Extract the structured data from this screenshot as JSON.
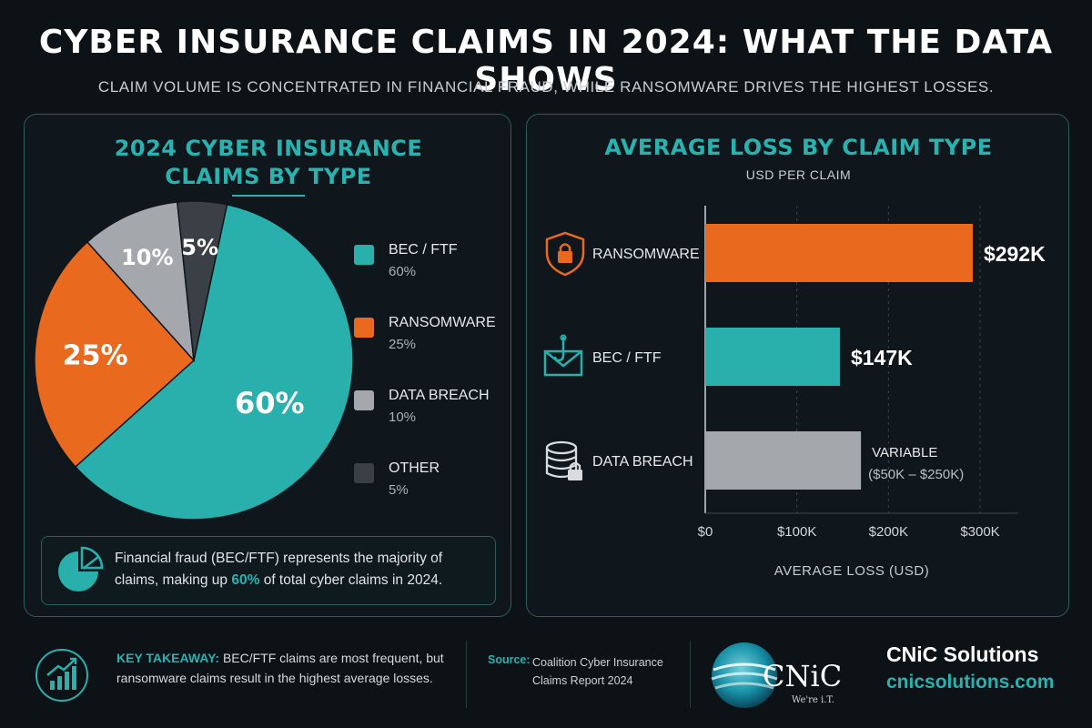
{
  "header": {
    "title": "CYBER INSURANCE CLAIMS IN 2024: WHAT THE DATA SHOWS",
    "subtitle": "CLAIM VOLUME IS CONCENTRATED IN FINANCIAL FRAUD, WHILE RANSOMWARE DRIVES THE HIGHEST LOSSES."
  },
  "colors": {
    "teal": "#29b0ad",
    "orange": "#e9691f",
    "gray": "#a4a8ad",
    "dark_gray": "#3b4046",
    "background": "#0d1217"
  },
  "chart_data": [
    {
      "type": "pie",
      "title_line1": "2024 CYBER INSURANCE",
      "title_line2": "CLAIMS BY TYPE",
      "slices": [
        {
          "label": "BEC / FTF",
          "value": 60,
          "display": "60%",
          "color": "#29b0ad"
        },
        {
          "label": "RANSOMWARE",
          "value": 25,
          "display": "25%",
          "color": "#e9691f"
        },
        {
          "label": "DATA BREACH",
          "value": 10,
          "display": "10%",
          "color": "#a4a8ad"
        },
        {
          "label": "OTHER",
          "value": 5,
          "display": "5%",
          "color": "#3b4046"
        }
      ],
      "legend_position": "right"
    },
    {
      "type": "bar",
      "orientation": "horizontal",
      "title": "AVERAGE LOSS BY CLAIM TYPE",
      "subtitle": "USD PER CLAIM",
      "categories": [
        "RANSOMWARE",
        "BEC / FTF",
        "DATA BREACH"
      ],
      "values": [
        292000,
        147000,
        170000
      ],
      "value_labels": [
        "$292K",
        "$147K",
        "VARIABLE"
      ],
      "value_label_extra": [
        "",
        "",
        "($50K – $250K)"
      ],
      "icons": [
        "shield-lock-icon",
        "envelope-hook-icon",
        "database-lock-icon"
      ],
      "colors": [
        "#e9691f",
        "#29b0ad",
        "#a4a8ad"
      ],
      "xlim": [
        0,
        300000
      ],
      "ticks": [
        0,
        100000,
        200000,
        300000
      ],
      "tick_labels": [
        "$0",
        "$100K",
        "$200K",
        "$300K"
      ],
      "xlabel": "AVERAGE LOSS (USD)",
      "grid": true
    }
  ],
  "callout": {
    "icon": "pie-chart-icon",
    "text_before": "Financial fraud (BEC/FTF) represents the majority of claims, making up ",
    "highlight": "60%",
    "text_after": " of total cyber claims in 2024."
  },
  "footer": {
    "takeaway_icon": "growth-chart-icon",
    "takeaway_label": "KEY TAKEAWAY:",
    "takeaway_text": " BEC/FTF claims are most frequent, but ransomware claims result in the highest average losses.",
    "source_label": "Source:",
    "source_text": "Coalition Cyber Insurance Claims Report 2024",
    "logo_text": "CNiC",
    "logo_tagline": "We're i.T.",
    "brand_name": "CNiC Solutions",
    "brand_url": "cnicsolutions.com"
  }
}
